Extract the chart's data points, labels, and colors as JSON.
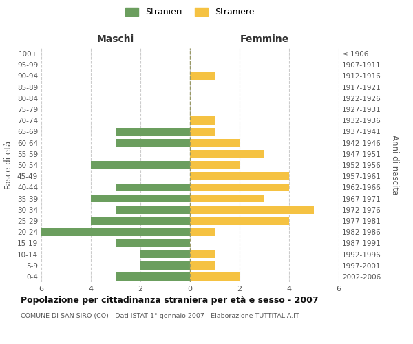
{
  "age_groups": [
    "100+",
    "95-99",
    "90-94",
    "85-89",
    "80-84",
    "75-79",
    "70-74",
    "65-69",
    "60-64",
    "55-59",
    "50-54",
    "45-49",
    "40-44",
    "35-39",
    "30-34",
    "25-29",
    "20-24",
    "15-19",
    "10-14",
    "5-9",
    "0-4"
  ],
  "birth_years": [
    "≤ 1906",
    "1907-1911",
    "1912-1916",
    "1917-1921",
    "1922-1926",
    "1927-1931",
    "1932-1936",
    "1937-1941",
    "1942-1946",
    "1947-1951",
    "1952-1956",
    "1957-1961",
    "1962-1966",
    "1967-1971",
    "1972-1976",
    "1977-1981",
    "1982-1986",
    "1987-1991",
    "1992-1996",
    "1997-2001",
    "2002-2006"
  ],
  "males": [
    0,
    0,
    0,
    0,
    0,
    0,
    0,
    3,
    3,
    0,
    4,
    0,
    3,
    4,
    3,
    4,
    6,
    3,
    2,
    2,
    3
  ],
  "females": [
    0,
    0,
    1,
    0,
    0,
    0,
    1,
    1,
    2,
    3,
    2,
    4,
    4,
    3,
    5,
    4,
    1,
    0,
    1,
    1,
    2
  ],
  "male_color": "#6b9e5e",
  "female_color": "#f5c242",
  "title": "Popolazione per cittadinanza straniera per età e sesso - 2007",
  "subtitle": "COMUNE DI SAN SIRO (CO) - Dati ISTAT 1° gennaio 2007 - Elaborazione TUTTITALIA.IT",
  "xlabel_left": "Maschi",
  "xlabel_right": "Femmine",
  "ylabel_left": "Fasce di età",
  "ylabel_right": "Anni di nascita",
  "legend_male": "Stranieri",
  "legend_female": "Straniere",
  "xlim": 6,
  "background_color": "#ffffff",
  "grid_color": "#cccccc"
}
